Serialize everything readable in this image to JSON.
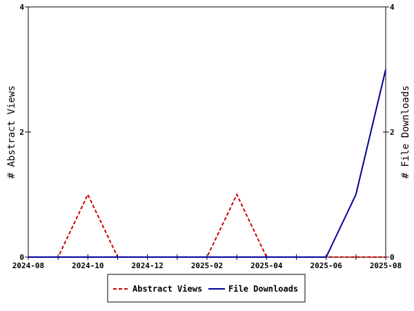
{
  "chart_data": {
    "type": "line",
    "x": [
      "2024-08",
      "2024-09",
      "2024-10",
      "2024-11",
      "2024-12",
      "2025-01",
      "2025-02",
      "2025-03",
      "2025-04",
      "2025-05",
      "2025-06",
      "2025-07",
      "2025-08"
    ],
    "x_tick_labels": [
      "2024-08",
      "2024-10",
      "2024-12",
      "2025-02",
      "2025-04",
      "2025-06",
      "2025-08"
    ],
    "series": [
      {
        "name": "Abstract Views",
        "axis": "left",
        "color": "#cc0000",
        "dash": "dashed",
        "values": [
          0,
          0,
          1,
          0,
          0,
          0,
          0,
          1,
          0,
          0,
          0,
          0,
          0
        ]
      },
      {
        "name": "File Downloads",
        "axis": "right",
        "color": "#000099",
        "dash": "solid",
        "values": [
          0,
          0,
          0,
          0,
          0,
          0,
          0,
          0,
          0,
          0,
          0,
          1,
          3
        ]
      }
    ],
    "ylabel_left": "# Abstract Views",
    "ylabel_right": "# File Downloads",
    "ylim_left": [
      0,
      4
    ],
    "ylim_right": [
      0,
      4
    ],
    "y_ticks_left": [
      0,
      2,
      4
    ],
    "y_ticks_right": [
      0,
      2,
      4
    ],
    "grid": false,
    "legend_position": "bottom-center"
  }
}
